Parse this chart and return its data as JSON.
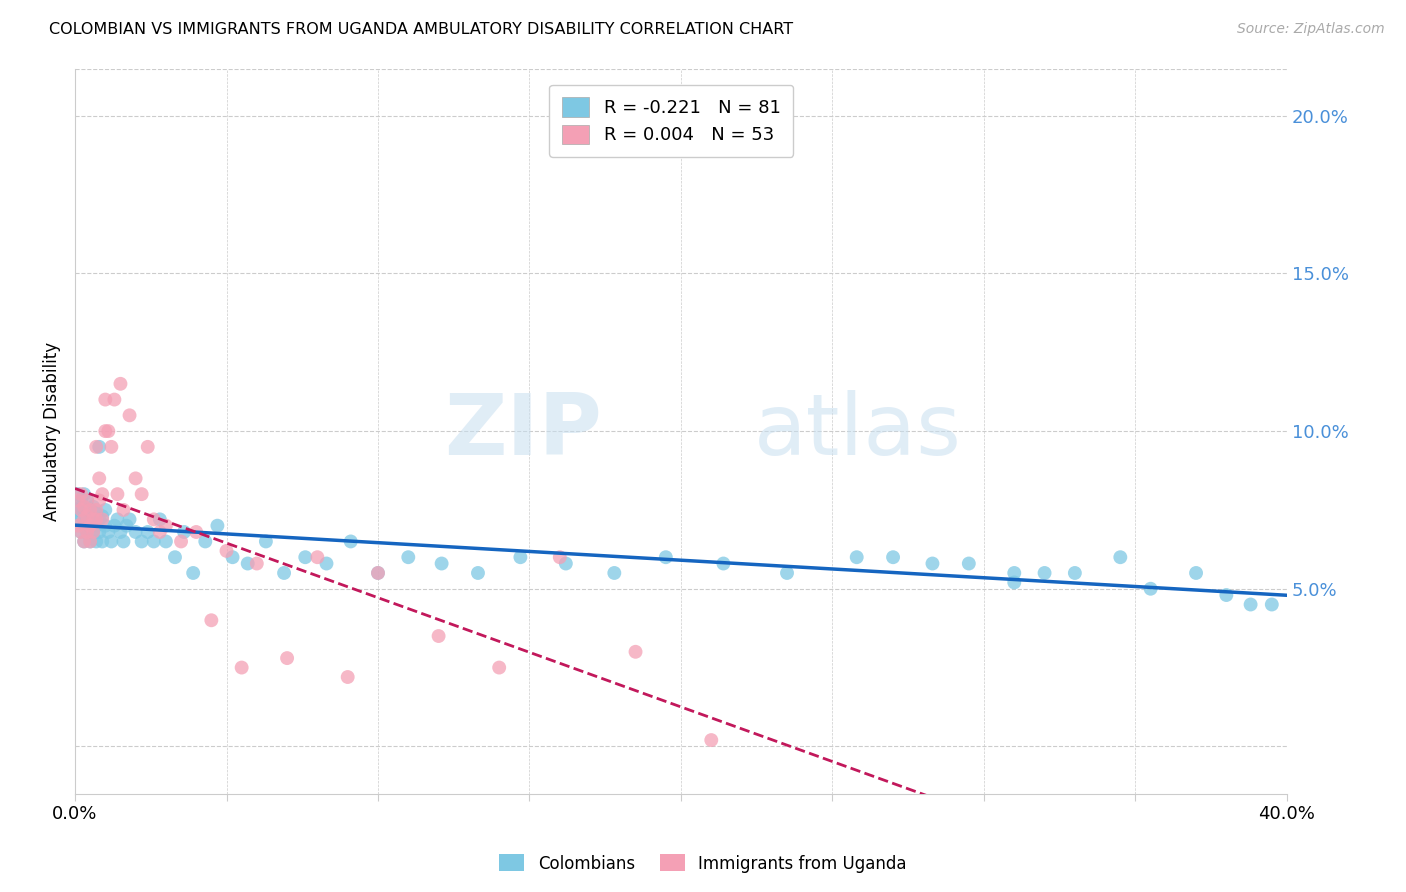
{
  "title": "COLOMBIAN VS IMMIGRANTS FROM UGANDA AMBULATORY DISABILITY CORRELATION CHART",
  "source": "Source: ZipAtlas.com",
  "ylabel": "Ambulatory Disability",
  "right_yticks": [
    0.0,
    0.05,
    0.1,
    0.15,
    0.2
  ],
  "right_yticklabels": [
    "",
    "5.0%",
    "10.0%",
    "15.0%",
    "20.0%"
  ],
  "xmin": 0.0,
  "xmax": 0.4,
  "ymin": -0.015,
  "ymax": 0.215,
  "colombians_R": -0.221,
  "colombians_N": 81,
  "uganda_R": 0.004,
  "uganda_N": 53,
  "blue_color": "#7ec8e3",
  "pink_color": "#f4a0b5",
  "trend_blue": "#1565c0",
  "trend_pink": "#c2185b",
  "watermark_zip": "ZIP",
  "watermark_atlas": "atlas",
  "legend_labels": [
    "Colombians",
    "Immigrants from Uganda"
  ],
  "colombians_x": [
    0.001,
    0.001,
    0.001,
    0.002,
    0.002,
    0.002,
    0.002,
    0.003,
    0.003,
    0.003,
    0.003,
    0.004,
    0.004,
    0.004,
    0.005,
    0.005,
    0.005,
    0.005,
    0.006,
    0.006,
    0.006,
    0.007,
    0.007,
    0.007,
    0.008,
    0.008,
    0.008,
    0.009,
    0.009,
    0.01,
    0.01,
    0.011,
    0.012,
    0.013,
    0.014,
    0.015,
    0.016,
    0.017,
    0.018,
    0.02,
    0.022,
    0.024,
    0.026,
    0.028,
    0.03,
    0.033,
    0.036,
    0.039,
    0.043,
    0.047,
    0.052,
    0.057,
    0.063,
    0.069,
    0.076,
    0.083,
    0.091,
    0.1,
    0.11,
    0.121,
    0.133,
    0.147,
    0.162,
    0.178,
    0.195,
    0.214,
    0.235,
    0.258,
    0.283,
    0.31,
    0.27,
    0.295,
    0.32,
    0.345,
    0.31,
    0.33,
    0.355,
    0.37,
    0.38,
    0.388,
    0.395
  ],
  "colombians_y": [
    0.075,
    0.072,
    0.08,
    0.068,
    0.078,
    0.073,
    0.076,
    0.07,
    0.074,
    0.065,
    0.08,
    0.072,
    0.078,
    0.068,
    0.075,
    0.07,
    0.065,
    0.073,
    0.072,
    0.068,
    0.076,
    0.07,
    0.065,
    0.074,
    0.072,
    0.095,
    0.068,
    0.073,
    0.065,
    0.07,
    0.075,
    0.068,
    0.065,
    0.07,
    0.072,
    0.068,
    0.065,
    0.07,
    0.072,
    0.068,
    0.065,
    0.068,
    0.065,
    0.072,
    0.065,
    0.06,
    0.068,
    0.055,
    0.065,
    0.07,
    0.06,
    0.058,
    0.065,
    0.055,
    0.06,
    0.058,
    0.065,
    0.055,
    0.06,
    0.058,
    0.055,
    0.06,
    0.058,
    0.055,
    0.06,
    0.058,
    0.055,
    0.06,
    0.058,
    0.055,
    0.06,
    0.058,
    0.055,
    0.06,
    0.052,
    0.055,
    0.05,
    0.055,
    0.048,
    0.045,
    0.045
  ],
  "uganda_x": [
    0.001,
    0.001,
    0.002,
    0.002,
    0.002,
    0.003,
    0.003,
    0.003,
    0.004,
    0.004,
    0.004,
    0.005,
    0.005,
    0.005,
    0.006,
    0.006,
    0.007,
    0.007,
    0.007,
    0.008,
    0.008,
    0.009,
    0.009,
    0.01,
    0.01,
    0.011,
    0.012,
    0.013,
    0.014,
    0.015,
    0.016,
    0.018,
    0.02,
    0.022,
    0.024,
    0.026,
    0.028,
    0.03,
    0.035,
    0.04,
    0.045,
    0.05,
    0.055,
    0.06,
    0.07,
    0.08,
    0.09,
    0.1,
    0.12,
    0.14,
    0.16,
    0.185,
    0.21
  ],
  "uganda_y": [
    0.07,
    0.078,
    0.068,
    0.075,
    0.08,
    0.072,
    0.065,
    0.076,
    0.078,
    0.068,
    0.073,
    0.07,
    0.075,
    0.065,
    0.072,
    0.068,
    0.075,
    0.072,
    0.095,
    0.085,
    0.078,
    0.072,
    0.08,
    0.11,
    0.1,
    0.1,
    0.095,
    0.11,
    0.08,
    0.115,
    0.075,
    0.105,
    0.085,
    0.08,
    0.095,
    0.072,
    0.068,
    0.07,
    0.065,
    0.068,
    0.04,
    0.062,
    0.025,
    0.058,
    0.028,
    0.06,
    0.022,
    0.055,
    0.035,
    0.025,
    0.06,
    0.03,
    0.002
  ]
}
